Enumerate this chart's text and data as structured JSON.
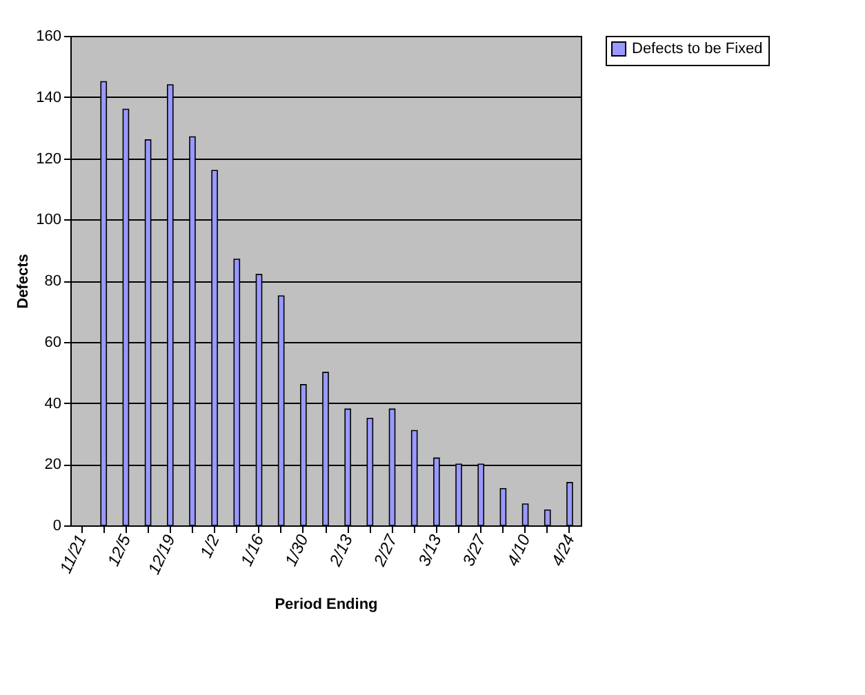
{
  "chart_data": {
    "type": "bar",
    "xlabel": "Period Ending",
    "ylabel": "Defects",
    "categories": [
      "11/21",
      null,
      "12/5",
      null,
      "12/19",
      null,
      "1/2",
      null,
      "1/16",
      null,
      "1/30",
      null,
      "2/13",
      null,
      "2/27",
      null,
      "3/13",
      null,
      "3/27",
      null,
      "4/10",
      null,
      "4/24"
    ],
    "series": [
      {
        "name": "Defects to be Fixed",
        "color": "#9999ff",
        "values": [
          null,
          145,
          136,
          126,
          144,
          127,
          116,
          87,
          82,
          75,
          46,
          50,
          38,
          35,
          38,
          31,
          22,
          20,
          20,
          12,
          7,
          5,
          14
        ]
      }
    ],
    "ylim": [
      0,
      160
    ],
    "yticks": [
      0,
      20,
      40,
      60,
      80,
      100,
      120,
      140,
      160
    ],
    "grid": "y",
    "legend": "right"
  }
}
